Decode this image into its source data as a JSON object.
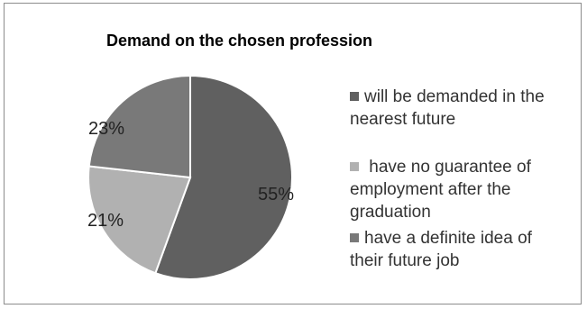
{
  "chart_data": {
    "type": "pie",
    "title": "Demand on the chosen profession",
    "slices": [
      {
        "label": "will be demanded in the nearest future",
        "value": 55,
        "display": "55%",
        "color": "#606060"
      },
      {
        "label": "have no guarantee of employment after the graduation",
        "value": 21,
        "display": "21%",
        "color": "#b1b1b1"
      },
      {
        "label": "have a definite idea of their future job",
        "value": 23,
        "display": "23%",
        "color": "#797979"
      }
    ],
    "legend": {
      "position": "right",
      "items": [
        {
          "line1": "will be demanded in the",
          "line2": "nearest future"
        },
        {
          "line1": "have no guarantee of",
          "line2": "employment after the",
          "line3": "graduation"
        },
        {
          "line1": "have a definite idea of",
          "line2": "their future job"
        }
      ]
    }
  }
}
